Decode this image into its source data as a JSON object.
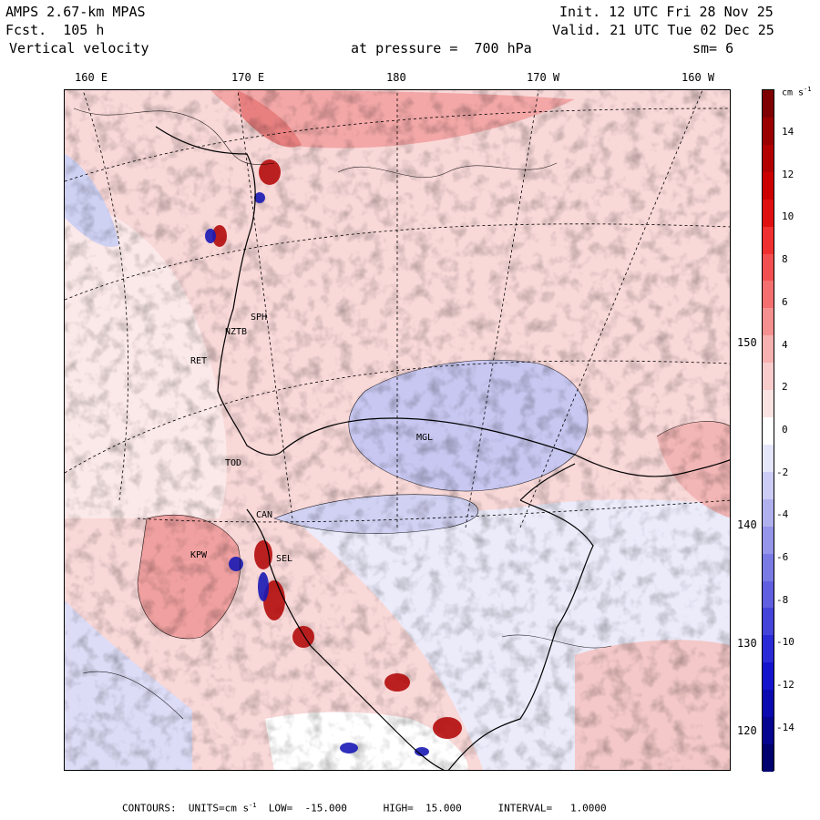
{
  "header": {
    "model": "AMPS 2.67-km MPAS",
    "fcst": "Fcst.  105 h",
    "field": "Vertical velocity",
    "init": "Init. 12 UTC Fri 28 Nov 25",
    "valid": "Valid. 21 UTC Tue 02 Dec 25",
    "level": "at pressure =  700 hPa",
    "smooth": "sm= 6"
  },
  "longitude_labels": [
    "160 E",
    "170 E",
    "180",
    "170 W",
    "160 W"
  ],
  "latitude_labels": [
    "150 W",
    "140 W",
    "130 W",
    "120 W"
  ],
  "stations": [
    "SPH",
    "NZTB",
    "RET",
    "TOD",
    "CAN",
    "KPW",
    "SEL",
    "MGL"
  ],
  "colorbar": {
    "unit": "cm s",
    "unit_exp": "-1",
    "ticks": [
      "14",
      "12",
      "10",
      "8",
      "6",
      "4",
      "2",
      "0",
      "-2",
      "-4",
      "-6",
      "-8",
      "-10",
      "-12",
      "-14"
    ],
    "colors_top_to_bottom": [
      "#7f0000",
      "#9b0000",
      "#b30000",
      "#cc0000",
      "#e01010",
      "#f03030",
      "#f25050",
      "#f47070",
      "#f59090",
      "#f7b0b0",
      "#f9cccc",
      "#fbe2e2",
      "#ffffff",
      "#e6e6fa",
      "#ccccf5",
      "#b0b0ef",
      "#9595ea",
      "#7a7ae5",
      "#5f5fe0",
      "#4444db",
      "#2a2ad6",
      "#1414cc",
      "#0a0ab0",
      "#05058f",
      "#00006e"
    ]
  },
  "footer": {
    "contours": "CONTOURS:",
    "units_label": "UNITS=cm s",
    "units_exp": "-1",
    "low": "LOW=  -15.000",
    "high": "HIGH=  15.000",
    "interval": "INTERVAL=   1.0000"
  }
}
